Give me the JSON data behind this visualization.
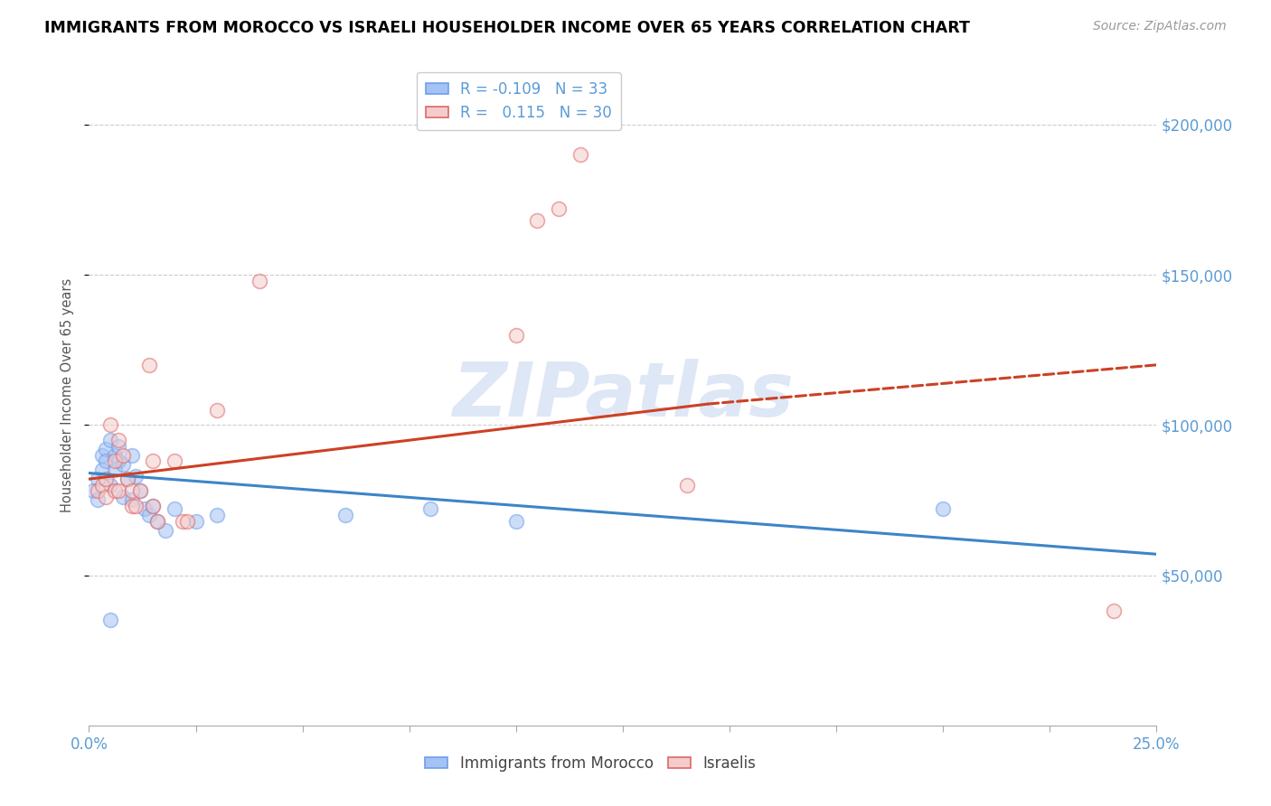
{
  "title": "IMMIGRANTS FROM MOROCCO VS ISRAELI HOUSEHOLDER INCOME OVER 65 YEARS CORRELATION CHART",
  "source": "Source: ZipAtlas.com",
  "ylabel": "Householder Income Over 65 years",
  "watermark": "ZIPatlas",
  "x_min": 0.0,
  "x_max": 0.25,
  "y_min": 0,
  "y_max": 220000,
  "x_tick_positions": [
    0.0,
    0.025,
    0.05,
    0.075,
    0.1,
    0.125,
    0.15,
    0.175,
    0.2,
    0.225,
    0.25
  ],
  "x_tick_labels_show": {
    "0.0": "0.0%",
    "0.25": "25.0%"
  },
  "y_ticks_right": [
    50000,
    100000,
    150000,
    200000
  ],
  "y_tick_labels_right": [
    "$50,000",
    "$100,000",
    "$150,000",
    "$200,000"
  ],
  "legend_blue_r": "-0.109",
  "legend_blue_n": "33",
  "legend_pink_r": "0.115",
  "legend_pink_n": "30",
  "blue_fill_color": "#a4c2f4",
  "pink_fill_color": "#f4cccc",
  "blue_edge_color": "#6d9eeb",
  "pink_edge_color": "#e06666",
  "blue_line_color": "#3d85c8",
  "pink_line_color": "#cc4125",
  "blue_scatter": [
    [
      0.001,
      78000
    ],
    [
      0.002,
      82000
    ],
    [
      0.002,
      75000
    ],
    [
      0.003,
      90000
    ],
    [
      0.003,
      85000
    ],
    [
      0.004,
      92000
    ],
    [
      0.004,
      88000
    ],
    [
      0.005,
      95000
    ],
    [
      0.005,
      80000
    ],
    [
      0.006,
      90000
    ],
    [
      0.006,
      85000
    ],
    [
      0.007,
      93000
    ],
    [
      0.007,
      88000
    ],
    [
      0.008,
      87000
    ],
    [
      0.008,
      76000
    ],
    [
      0.009,
      82000
    ],
    [
      0.01,
      90000
    ],
    [
      0.01,
      75000
    ],
    [
      0.011,
      83000
    ],
    [
      0.012,
      78000
    ],
    [
      0.013,
      72000
    ],
    [
      0.014,
      70000
    ],
    [
      0.015,
      73000
    ],
    [
      0.016,
      68000
    ],
    [
      0.018,
      65000
    ],
    [
      0.02,
      72000
    ],
    [
      0.025,
      68000
    ],
    [
      0.03,
      70000
    ],
    [
      0.06,
      70000
    ],
    [
      0.08,
      72000
    ],
    [
      0.1,
      68000
    ],
    [
      0.2,
      72000
    ],
    [
      0.005,
      35000
    ]
  ],
  "pink_scatter": [
    [
      0.002,
      78000
    ],
    [
      0.003,
      80000
    ],
    [
      0.004,
      82000
    ],
    [
      0.004,
      76000
    ],
    [
      0.005,
      100000
    ],
    [
      0.006,
      88000
    ],
    [
      0.006,
      78000
    ],
    [
      0.007,
      95000
    ],
    [
      0.007,
      78000
    ],
    [
      0.008,
      90000
    ],
    [
      0.009,
      82000
    ],
    [
      0.01,
      78000
    ],
    [
      0.01,
      73000
    ],
    [
      0.011,
      73000
    ],
    [
      0.012,
      78000
    ],
    [
      0.014,
      120000
    ],
    [
      0.015,
      88000
    ],
    [
      0.015,
      73000
    ],
    [
      0.016,
      68000
    ],
    [
      0.02,
      88000
    ],
    [
      0.022,
      68000
    ],
    [
      0.023,
      68000
    ],
    [
      0.03,
      105000
    ],
    [
      0.04,
      148000
    ],
    [
      0.1,
      130000
    ],
    [
      0.105,
      168000
    ],
    [
      0.11,
      172000
    ],
    [
      0.115,
      190000
    ],
    [
      0.14,
      80000
    ],
    [
      0.24,
      38000
    ]
  ],
  "blue_trend": [
    0.0,
    0.25,
    84000,
    57000
  ],
  "pink_trend_solid": [
    0.0,
    0.145,
    82000,
    107000
  ],
  "pink_trend_dash": [
    0.145,
    0.25,
    107000,
    120000
  ],
  "background_color": "#ffffff",
  "grid_color": "#cccccc",
  "grid_linestyle": "--",
  "title_color": "#000000",
  "axis_tick_color": "#5b9bd5",
  "watermark_color": "#c8d8f0",
  "watermark_alpha": 0.6,
  "marker_size": 130,
  "marker_alpha": 0.55,
  "marker_linewidth": 1.2
}
